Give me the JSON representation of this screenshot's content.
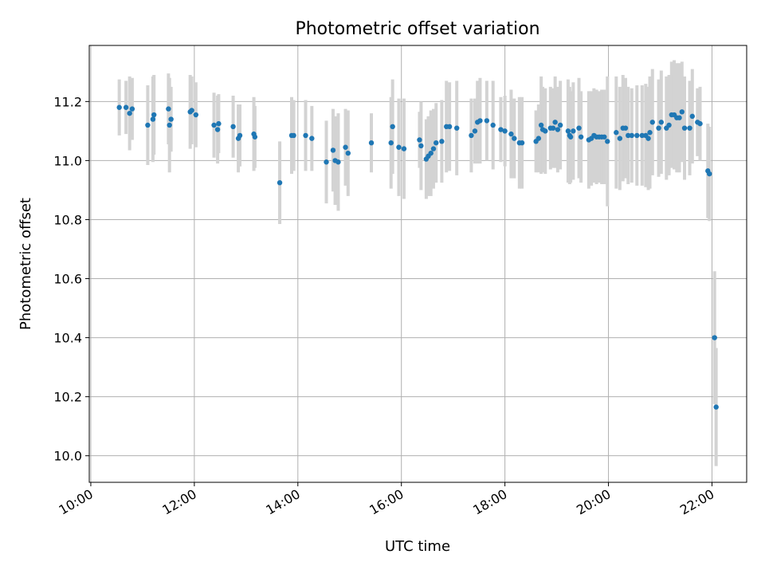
{
  "chart_data": {
    "type": "scatter",
    "title": "Photometric offset variation",
    "xlabel": "UTC time",
    "ylabel": "Photometric offset",
    "x_ticks": [
      "10:00",
      "12:00",
      "14:00",
      "16:00",
      "18:00",
      "20:00",
      "22:00"
    ],
    "y_ticks": [
      "10.0",
      "10.2",
      "10.4",
      "10.6",
      "10.8",
      "11.0",
      "11.2"
    ],
    "x_unit": "UTC hour",
    "xlim": [
      9.97,
      22.67
    ],
    "ylim": [
      9.91,
      11.39
    ],
    "grid": true,
    "colors": {
      "point": "#1f77b4",
      "errorbar": "#d3d3d3",
      "grid": "#b0b0b0"
    },
    "series": [
      {
        "x": [
          10.55,
          10.68,
          10.75,
          10.8,
          11.1,
          11.2,
          11.22,
          11.5,
          11.52,
          11.55,
          11.92,
          11.95,
          12.03,
          12.38,
          12.45,
          12.47,
          12.75,
          12.85,
          12.88,
          13.15,
          13.17,
          13.65,
          13.88,
          13.92,
          14.15,
          14.27,
          14.55,
          14.68,
          14.72,
          14.78,
          14.92,
          14.97,
          15.42,
          15.8,
          15.83,
          15.95,
          16.05,
          16.35,
          16.38,
          16.48,
          16.52,
          16.57,
          16.62,
          16.67,
          16.78,
          16.87,
          16.93,
          17.07,
          17.35,
          17.42,
          17.47,
          17.52,
          17.65,
          17.77,
          17.92,
          18.0,
          18.12,
          18.18,
          18.28,
          18.33,
          18.6,
          18.65,
          18.7,
          18.73,
          18.78,
          18.88,
          18.93,
          18.97,
          19.02,
          19.07,
          19.22,
          19.25,
          19.27,
          19.32,
          19.43,
          19.47,
          19.62,
          19.67,
          19.72,
          19.77,
          19.82,
          19.87,
          19.92,
          19.98,
          20.15,
          20.22,
          20.28,
          20.33,
          20.38,
          20.45,
          20.55,
          20.65,
          20.72,
          20.77,
          20.8,
          20.85,
          20.97,
          21.02,
          21.12,
          21.17,
          21.22,
          21.27,
          21.32,
          21.37,
          21.42,
          21.47,
          21.57,
          21.62,
          21.72,
          21.77,
          21.92,
          21.95,
          22.05,
          22.08
        ],
        "y": [
          11.18,
          11.18,
          11.16,
          11.175,
          11.12,
          11.14,
          11.155,
          11.175,
          11.12,
          11.14,
          11.165,
          11.17,
          11.155,
          11.12,
          11.105,
          11.125,
          11.115,
          11.075,
          11.085,
          11.09,
          11.08,
          10.925,
          11.085,
          11.085,
          11.085,
          11.075,
          10.995,
          11.035,
          11.0,
          10.995,
          11.045,
          11.025,
          11.06,
          11.06,
          11.115,
          11.045,
          11.04,
          11.07,
          11.05,
          11.005,
          11.015,
          11.025,
          11.04,
          11.06,
          11.065,
          11.115,
          11.115,
          11.11,
          11.085,
          11.1,
          11.13,
          11.135,
          11.135,
          11.12,
          11.105,
          11.1,
          11.09,
          11.075,
          11.06,
          11.06,
          11.065,
          11.075,
          11.12,
          11.105,
          11.1,
          11.11,
          11.11,
          11.13,
          11.105,
          11.12,
          11.1,
          11.085,
          11.08,
          11.1,
          11.11,
          11.08,
          11.07,
          11.075,
          11.085,
          11.08,
          11.08,
          11.08,
          11.08,
          11.065,
          11.095,
          11.075,
          11.11,
          11.11,
          11.085,
          11.085,
          11.085,
          11.085,
          11.085,
          11.075,
          11.095,
          11.13,
          11.11,
          11.13,
          11.11,
          11.12,
          11.155,
          11.155,
          11.145,
          11.145,
          11.165,
          11.11,
          11.11,
          11.15,
          11.13,
          11.125,
          10.965,
          10.955,
          10.4,
          10.165
        ],
        "err": [
          0.095,
          0.09,
          0.125,
          0.105,
          0.135,
          0.145,
          0.135,
          0.12,
          0.16,
          0.11,
          0.125,
          0.115,
          0.11,
          0.11,
          0.115,
          0.1,
          0.105,
          0.115,
          0.105,
          0.125,
          0.105,
          0.14,
          0.13,
          0.12,
          0.12,
          0.11,
          0.14,
          0.14,
          0.15,
          0.165,
          0.13,
          0.145,
          0.1,
          0.155,
          0.16,
          0.165,
          0.17,
          0.095,
          0.15,
          0.135,
          0.135,
          0.145,
          0.135,
          0.135,
          0.14,
          0.155,
          0.15,
          0.16,
          0.125,
          0.11,
          0.14,
          0.145,
          0.135,
          0.15,
          0.11,
          0.12,
          0.15,
          0.135,
          0.155,
          0.155,
          0.105,
          0.115,
          0.165,
          0.145,
          0.145,
          0.14,
          0.135,
          0.155,
          0.145,
          0.15,
          0.175,
          0.165,
          0.155,
          0.165,
          0.17,
          0.155,
          0.165,
          0.16,
          0.16,
          0.16,
          0.155,
          0.16,
          0.16,
          0.22,
          0.19,
          0.175,
          0.18,
          0.17,
          0.165,
          0.16,
          0.17,
          0.17,
          0.175,
          0.175,
          0.19,
          0.18,
          0.165,
          0.175,
          0.175,
          0.17,
          0.18,
          0.185,
          0.185,
          0.185,
          0.17,
          0.175,
          0.16,
          0.16,
          0.115,
          0.125,
          0.16,
          0.16,
          0.225,
          0.2
        ]
      }
    ]
  }
}
